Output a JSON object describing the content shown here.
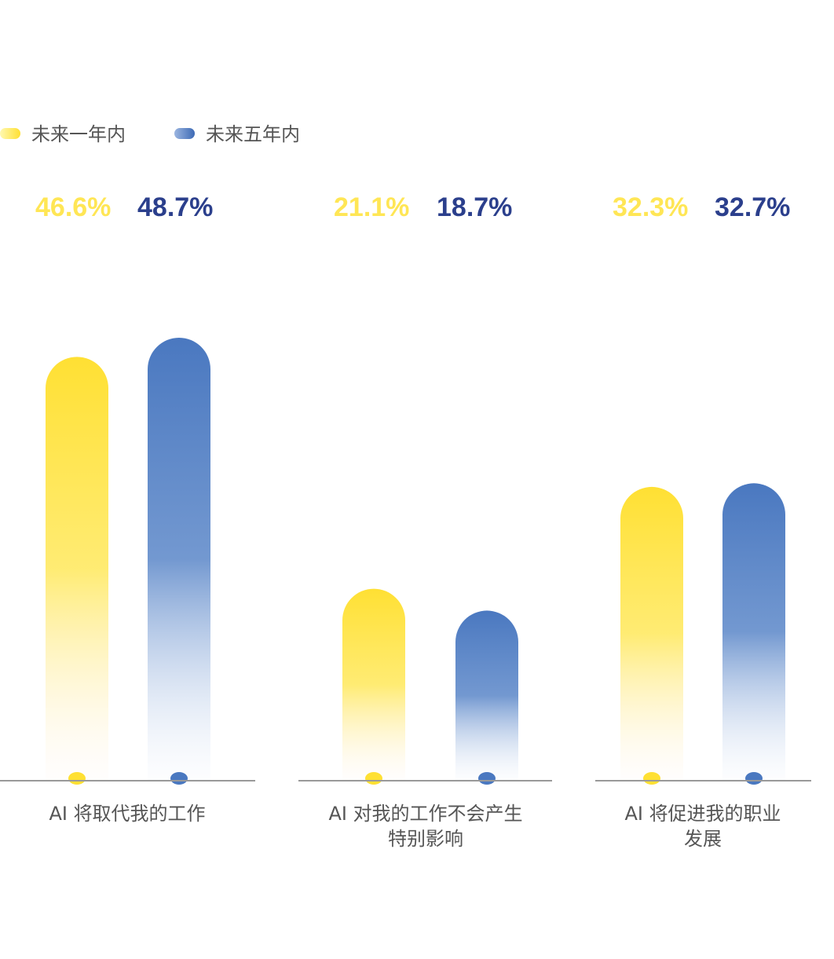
{
  "chart_data": {
    "type": "bar",
    "series": [
      {
        "name": "未来一年内",
        "color": "#ffe033",
        "label_color": "#ffe655",
        "values": [
          46.6,
          21.1,
          32.3
        ]
      },
      {
        "name": "未来五年内",
        "color": "#4a78c0",
        "label_color": "#2b3f8c",
        "values": [
          48.7,
          18.7,
          32.7
        ]
      }
    ],
    "categories": [
      [
        "AI 将取代我的工作"
      ],
      [
        "AI 对我的工作不会产生",
        "特别影响"
      ],
      [
        "AI 将促进我的职业",
        "发展"
      ]
    ],
    "value_labels": [
      [
        "46.6%",
        "21.1%",
        "32.3%"
      ],
      [
        "48.7%",
        "18.7%",
        "32.7%"
      ]
    ],
    "ylim": [
      0,
      48.7
    ],
    "grid": false,
    "legend_position": "top-left"
  }
}
